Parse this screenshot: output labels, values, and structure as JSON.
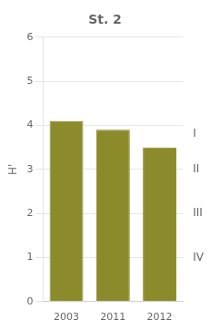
{
  "chart_data": {
    "type": "bar",
    "title": "St. 2",
    "ylabel": "H'",
    "categories": [
      "2003",
      "2011",
      "2012"
    ],
    "values": [
      4.1,
      3.9,
      3.5
    ],
    "color": "#8B8B2B",
    "ylim": [
      0,
      6
    ],
    "yticks": [
      0,
      1,
      2,
      3,
      4,
      5,
      6
    ],
    "grid": true,
    "y2lim": [
      0,
      6
    ],
    "y2ticks": [
      {
        "value": 3.8,
        "label": "I"
      },
      {
        "value": 3.0,
        "label": "II"
      },
      {
        "value": 2.0,
        "label": "III"
      },
      {
        "value": 1.0,
        "label": "IV"
      }
    ]
  }
}
